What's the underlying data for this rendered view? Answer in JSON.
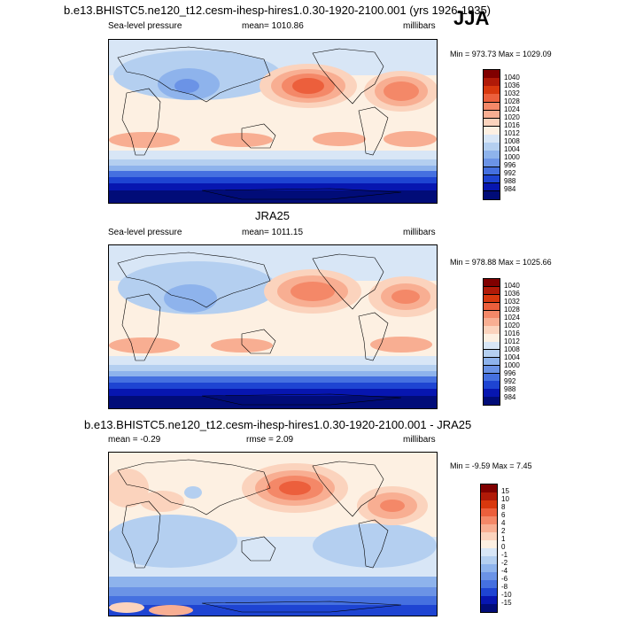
{
  "figure": {
    "season": "JJA",
    "model_title": "b.e13.BHISTC5.ne120_t12.cesm-ihesp-hires1.0.30-1920-2100.001 (yrs 1926-1935)"
  },
  "panels": [
    {
      "id": "model",
      "variable": "Sea-level pressure",
      "mean_text": "mean= 1010.86",
      "units": "millibars",
      "minmax": "Min = 973.73 Max = 1029.09",
      "levels": [
        "1040",
        "1036",
        "1032",
        "1028",
        "1024",
        "1020",
        "1016",
        "1012",
        "1008",
        "1004",
        "1000",
        "996",
        "992",
        "988",
        "984"
      ],
      "colors": [
        "#800000",
        "#b01a08",
        "#d8380e",
        "#ec5f3c",
        "#f48868",
        "#f8ae92",
        "#fbd3bd",
        "#fdf0e2",
        "#d8e6f6",
        "#b4cff0",
        "#8eb3ec",
        "#6b93e6",
        "#4570e0",
        "#1e44d2",
        "#0716b0",
        "#010c78"
      ]
    },
    {
      "id": "obs",
      "heading": "JRA25",
      "variable": "Sea-level pressure",
      "mean_text": "mean= 1011.15",
      "units": "millibars",
      "minmax": "Min = 978.88 Max = 1025.66",
      "levels": [
        "1040",
        "1036",
        "1032",
        "1028",
        "1024",
        "1020",
        "1016",
        "1012",
        "1008",
        "1004",
        "1000",
        "996",
        "992",
        "988",
        "984"
      ],
      "colors": [
        "#800000",
        "#b01a08",
        "#d8380e",
        "#ec5f3c",
        "#f48868",
        "#f8ae92",
        "#fbd3bd",
        "#fdf0e2",
        "#d8e6f6",
        "#b4cff0",
        "#8eb3ec",
        "#6b93e6",
        "#4570e0",
        "#1e44d2",
        "#0716b0",
        "#010c78"
      ]
    },
    {
      "id": "diff",
      "heading": "b.e13.BHISTC5.ne120_t12.cesm-ihesp-hires1.0.30-1920-2100.001 - JRA25",
      "mean_text": "mean =  -0.29",
      "rmse_text": "rmse =   2.09",
      "units": "millibars",
      "minmax": "Min =  -9.59 Max =   7.45",
      "levels": [
        "15",
        "10",
        "8",
        "6",
        "4",
        "2",
        "1",
        "0",
        "-1",
        "-2",
        "-4",
        "-6",
        "-8",
        "-10",
        "-15"
      ],
      "colors": [
        "#800000",
        "#b01a08",
        "#d8380e",
        "#ec5f3c",
        "#f48868",
        "#f8ae92",
        "#fbd3bd",
        "#fdf0e2",
        "#d8e6f6",
        "#b4cff0",
        "#8eb3ec",
        "#6b93e6",
        "#4570e0",
        "#1e44d2",
        "#0716b0",
        "#010c78"
      ]
    }
  ]
}
